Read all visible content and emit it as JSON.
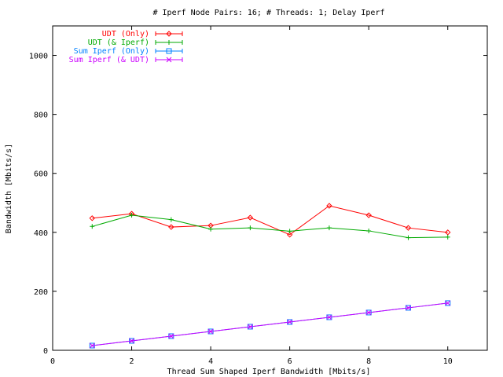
{
  "chart_data": {
    "type": "line",
    "title": "# Iperf Node Pairs: 16; # Threads: 1; Delay Iperf",
    "xlabel": "Thread Sum Shaped Iperf Bandwidth [Mbits/s]",
    "ylabel": "Bandwidth [Mbits/s]",
    "xlim": [
      0,
      11
    ],
    "ylim": [
      0,
      1100
    ],
    "xticks": [
      0,
      2,
      4,
      6,
      8,
      10
    ],
    "yticks": [
      0,
      200,
      400,
      600,
      800,
      1000
    ],
    "grid": false,
    "legend_position": "top-left",
    "x": [
      1,
      2,
      3,
      4,
      5,
      6,
      7,
      8,
      9,
      10
    ],
    "series": [
      {
        "name": "UDT (Only)",
        "color": "#ff0000",
        "marker": "diamond",
        "values": [
          448,
          463,
          418,
          423,
          450,
          392,
          490,
          458,
          415,
          400
        ]
      },
      {
        "name": "UDT (& Iperf)",
        "color": "#00aa00",
        "marker": "plus",
        "values": [
          420,
          458,
          443,
          411,
          415,
          404,
          415,
          405,
          382,
          384
        ]
      },
      {
        "name": "Sum Iperf (Only)",
        "color": "#0080ff",
        "marker": "square",
        "values": [
          16,
          32,
          48,
          64,
          80,
          96,
          112,
          128,
          144,
          160
        ]
      },
      {
        "name": "Sum Iperf (& UDT)",
        "color": "#cc00ff",
        "marker": "cross",
        "values": [
          16,
          32,
          48,
          64,
          80,
          96,
          112,
          128,
          144,
          160
        ]
      }
    ]
  }
}
